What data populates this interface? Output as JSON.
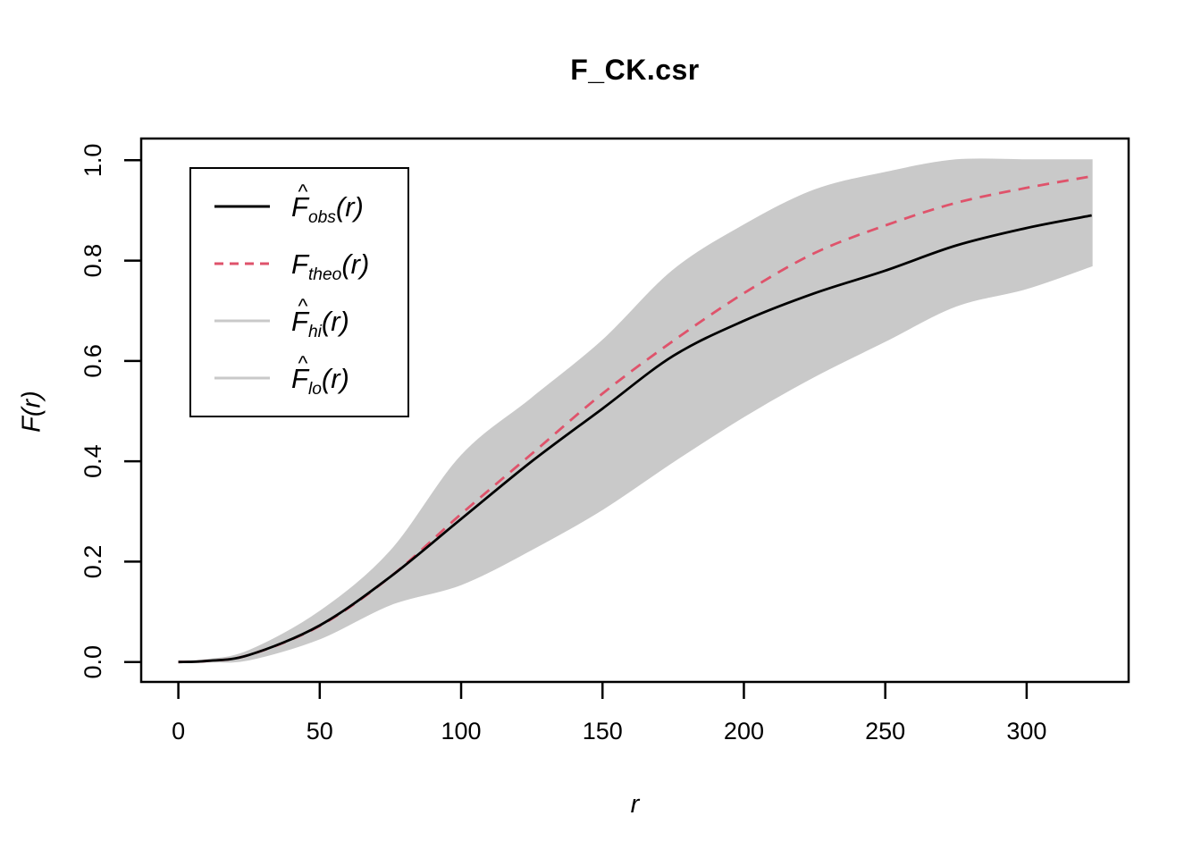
{
  "title": "F_CK.csr",
  "axes": {
    "x_label": "r",
    "y_label": "F(r)",
    "x_ticks": [
      "0",
      "50",
      "100",
      "150",
      "200",
      "250",
      "300"
    ],
    "x_tick_values": [
      0,
      50,
      100,
      150,
      200,
      250,
      300
    ],
    "y_ticks": [
      "0.0",
      "0.2",
      "0.4",
      "0.6",
      "0.8",
      "1.0"
    ],
    "y_tick_values": [
      0.0,
      0.2,
      0.4,
      0.6,
      0.8,
      1.0
    ],
    "xlim": [
      0,
      336
    ],
    "ylim": [
      0,
      1
    ]
  },
  "colors": {
    "observed": "#000000",
    "theoretical": "#DF536B",
    "envelope_fill": "#C9C9C9",
    "envelope_line": "#C9C9C9",
    "plot_border": "#000000"
  },
  "legend": {
    "items": [
      {
        "id": "obs",
        "main": "F",
        "hat": true,
        "sub": "obs",
        "arg": "(r)",
        "color": "#000000",
        "dashed": false
      },
      {
        "id": "theo",
        "main": "F",
        "hat": false,
        "sub": "theo",
        "arg": "(r)",
        "color": "#DF536B",
        "dashed": true
      },
      {
        "id": "hi",
        "main": "F",
        "hat": true,
        "sub": "hi",
        "arg": "(r)",
        "color": "#C9C9C9",
        "dashed": false
      },
      {
        "id": "lo",
        "main": "F",
        "hat": true,
        "sub": "lo",
        "arg": "(r)",
        "color": "#C9C9C9",
        "dashed": false
      }
    ]
  },
  "chart_data": {
    "type": "line",
    "title": "F_CK.csr",
    "xlabel": "r",
    "ylabel": "F(r)",
    "xlim": [
      0,
      336
    ],
    "ylim": [
      0,
      1
    ],
    "grid": false,
    "legend_position": "top-left",
    "x": [
      0,
      10,
      25,
      50,
      75,
      100,
      125,
      150,
      175,
      200,
      225,
      250,
      275,
      300,
      323
    ],
    "series": [
      {
        "name": "F_obs(r)",
        "role": "observed",
        "line": "solid black",
        "values": [
          0,
          0.002,
          0.014,
          0.073,
          0.17,
          0.285,
          0.4,
          0.505,
          0.61,
          0.68,
          0.735,
          0.78,
          0.83,
          0.865,
          0.89
        ]
      },
      {
        "name": "F_theo(r)",
        "role": "theoretical",
        "line": "dashed red",
        "values": [
          0,
          0.002,
          0.014,
          0.072,
          0.17,
          0.295,
          0.415,
          0.535,
          0.64,
          0.735,
          0.815,
          0.87,
          0.915,
          0.945,
          0.968
        ]
      },
      {
        "name": "F_hi(r)",
        "role": "upper-envelope",
        "line": "gray band edge",
        "values": [
          0,
          0.004,
          0.022,
          0.1,
          0.22,
          0.41,
          0.525,
          0.64,
          0.78,
          0.87,
          0.94,
          0.975,
          1.0,
          1.0,
          1.0
        ]
      },
      {
        "name": "F_lo(r)",
        "role": "lower-envelope",
        "line": "gray band edge",
        "values": [
          0,
          0.001,
          0.005,
          0.047,
          0.115,
          0.155,
          0.225,
          0.305,
          0.4,
          0.49,
          0.57,
          0.64,
          0.71,
          0.745,
          0.79
        ]
      }
    ],
    "envelope": {
      "between": [
        "F_hi(r)",
        "F_lo(r)"
      ],
      "fill": "#C9C9C9"
    }
  }
}
